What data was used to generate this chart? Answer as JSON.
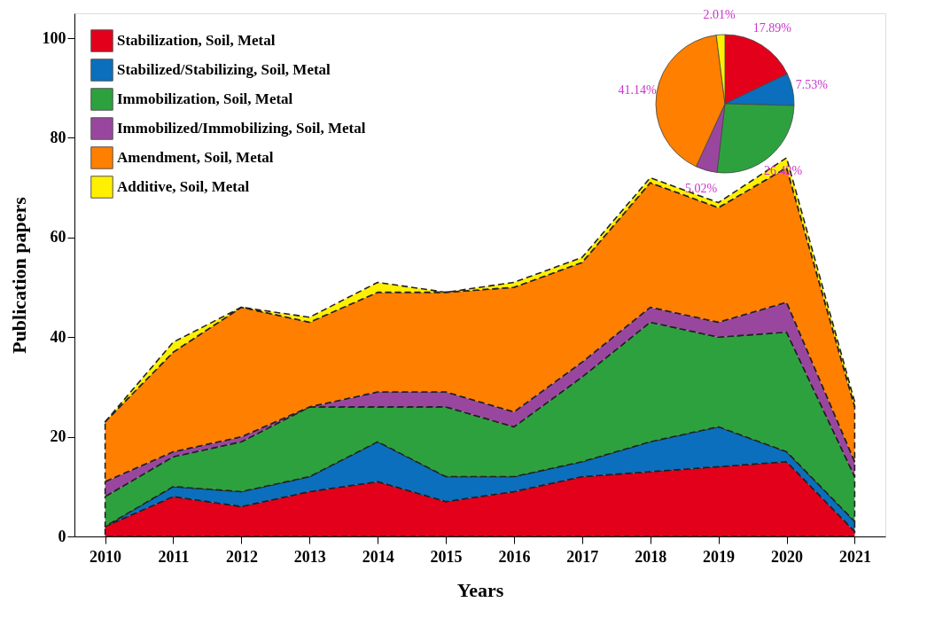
{
  "chart_data": [
    {
      "type": "area",
      "stacked": true,
      "xlabel": "Years",
      "ylabel": "Publication papers",
      "legend": "top left",
      "line_style": "dashed",
      "ylim": [
        0,
        105
      ],
      "yticks": [
        0,
        20,
        40,
        60,
        80,
        100
      ],
      "categories": [
        "2010",
        "2011",
        "2012",
        "2013",
        "2014",
        "2015",
        "2016",
        "2017",
        "2018",
        "2019",
        "2020",
        "2021"
      ],
      "series": [
        {
          "name": "Stabilization, Soil, Metal",
          "color": "#e3001b",
          "values": [
            2,
            8,
            6,
            9,
            11,
            7,
            9,
            12,
            13,
            14,
            15,
            1
          ]
        },
        {
          "name": "Stabilized/Stabilizing, Soil, Metal",
          "color": "#0b6fbd",
          "values": [
            0,
            2,
            3,
            3,
            8,
            5,
            3,
            3,
            6,
            8,
            2,
            2
          ]
        },
        {
          "name": "Immobilization, Soil, Metal",
          "color": "#2ea13f",
          "values": [
            6,
            6,
            10,
            14,
            7,
            14,
            10,
            17,
            24,
            18,
            24,
            9
          ]
        },
        {
          "name": "Immobilized/Immobilizing, Soil, Metal",
          "color": "#99479e",
          "values": [
            3,
            1,
            1,
            0,
            3,
            3,
            3,
            3,
            3,
            3,
            6,
            3
          ]
        },
        {
          "name": "Amendment, Soil, Metal",
          "color": "#ff7f00",
          "values": [
            12,
            20,
            26,
            17,
            20,
            20,
            25,
            20,
            25,
            23,
            27,
            11
          ]
        },
        {
          "name": "Additive, Soil, Metal",
          "color": "#ffef00",
          "values": [
            0,
            2,
            0,
            1,
            2,
            0,
            1,
            1,
            1,
            1,
            2,
            1
          ]
        }
      ]
    },
    {
      "type": "pie",
      "categories": [
        null,
        null,
        null,
        null,
        null,
        null
      ],
      "values": [
        17.89,
        7.53,
        26.42,
        5.02,
        41.14,
        2.01
      ],
      "colors": [
        "#e3001b",
        "#0b6fbd",
        "#2ea13f",
        "#99479e",
        "#ff7f00",
        "#ffef00"
      ],
      "value_labels": [
        "17.89%",
        "7.53%",
        "26.42%",
        "5.02%",
        "41.14%",
        "2.01%"
      ]
    }
  ]
}
